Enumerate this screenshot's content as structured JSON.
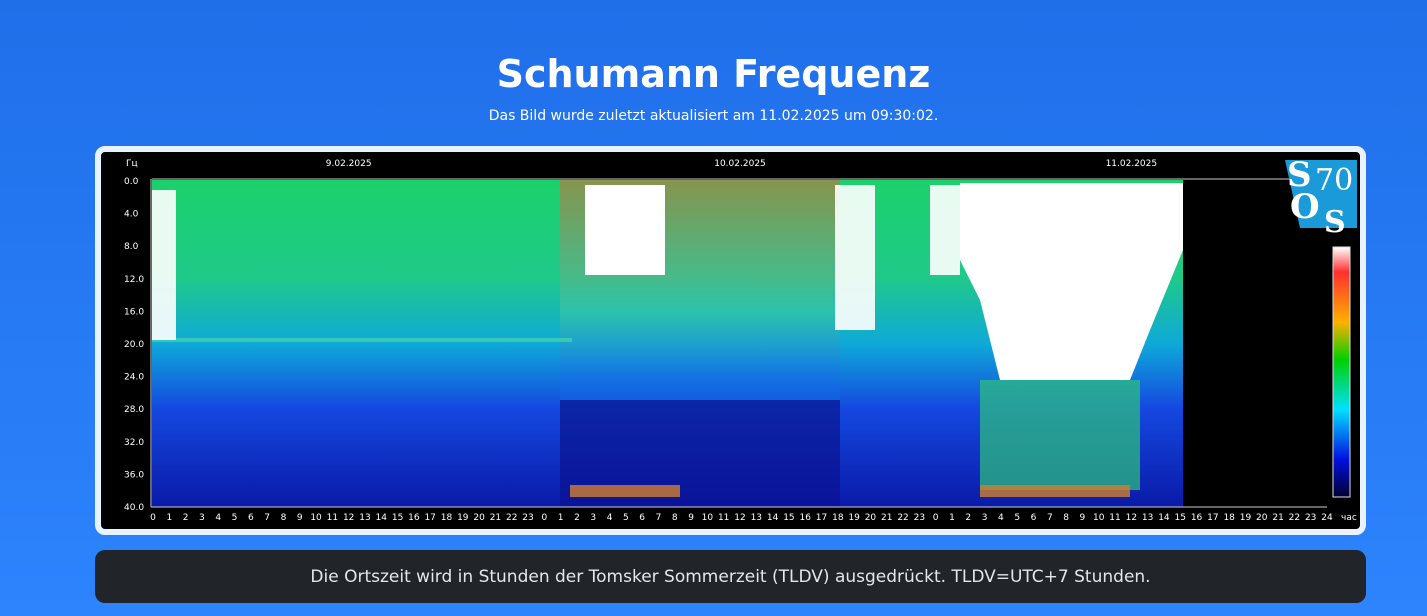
{
  "header": {
    "title": "Schumann Frequenz",
    "subtitle": "Das Bild wurde zuletzt aktualisiert am 11.02.2025 um 09:30:02."
  },
  "spectrogram": {
    "y_unit": "Гц",
    "x_unit": "час",
    "dates": [
      "9.02.2025",
      "10.02.2025",
      "11.02.2025"
    ],
    "y_labels": [
      "0.0",
      "4.0",
      "8.0",
      "12.0",
      "16.0",
      "20.0",
      "24.0",
      "28.0",
      "32.0",
      "36.0",
      "40.0"
    ],
    "x_labels": [
      0,
      1,
      2,
      3,
      4,
      5,
      6,
      7,
      8,
      9,
      10,
      11,
      12,
      13,
      14,
      15,
      16,
      17,
      18,
      19,
      20,
      21,
      22,
      23,
      0,
      1,
      2,
      3,
      4,
      5,
      6,
      7,
      8,
      9,
      10,
      11,
      12,
      13,
      14,
      15,
      16,
      17,
      18,
      19,
      20,
      21,
      22,
      23,
      0,
      1,
      2,
      3,
      4,
      5,
      6,
      7,
      8,
      9,
      10,
      11,
      12,
      13,
      14,
      15,
      16,
      17,
      18,
      19,
      20,
      21,
      22,
      23,
      24
    ]
  },
  "logo": {
    "s1": "S",
    "num": "70",
    "o": "O",
    "s2": "S"
  },
  "footer": {
    "note": "Die Ortszeit wird in Stunden der Tomsker Sommerzeit (TLDV) ausgedrückt. TLDV=UTC+7 Stunden."
  }
}
